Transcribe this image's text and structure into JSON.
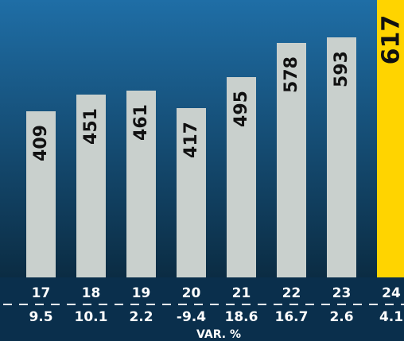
{
  "chart_data": {
    "type": "bar",
    "title": "",
    "xlabel": "",
    "ylabel": "",
    "categories": [
      "17",
      "18",
      "19",
      "20",
      "21",
      "22",
      "23",
      "24"
    ],
    "values": [
      409,
      451,
      461,
      417,
      495,
      578,
      593,
      617
    ],
    "variation_label": "VAR. %",
    "variations": [
      "9.5",
      "10.1",
      "2.2",
      "-9.4",
      "18.6",
      "16.7",
      "2.6",
      "4.1"
    ],
    "highlight_index": 7,
    "colors": {
      "bar": "#c9d0cd",
      "highlight": "#ffd400",
      "text": "#111111",
      "axis_text": "#ffffff",
      "bg_top": "#1f6ea6",
      "bg_bottom": "#0b2c43",
      "footer_bg": "#0a2f4c"
    }
  }
}
